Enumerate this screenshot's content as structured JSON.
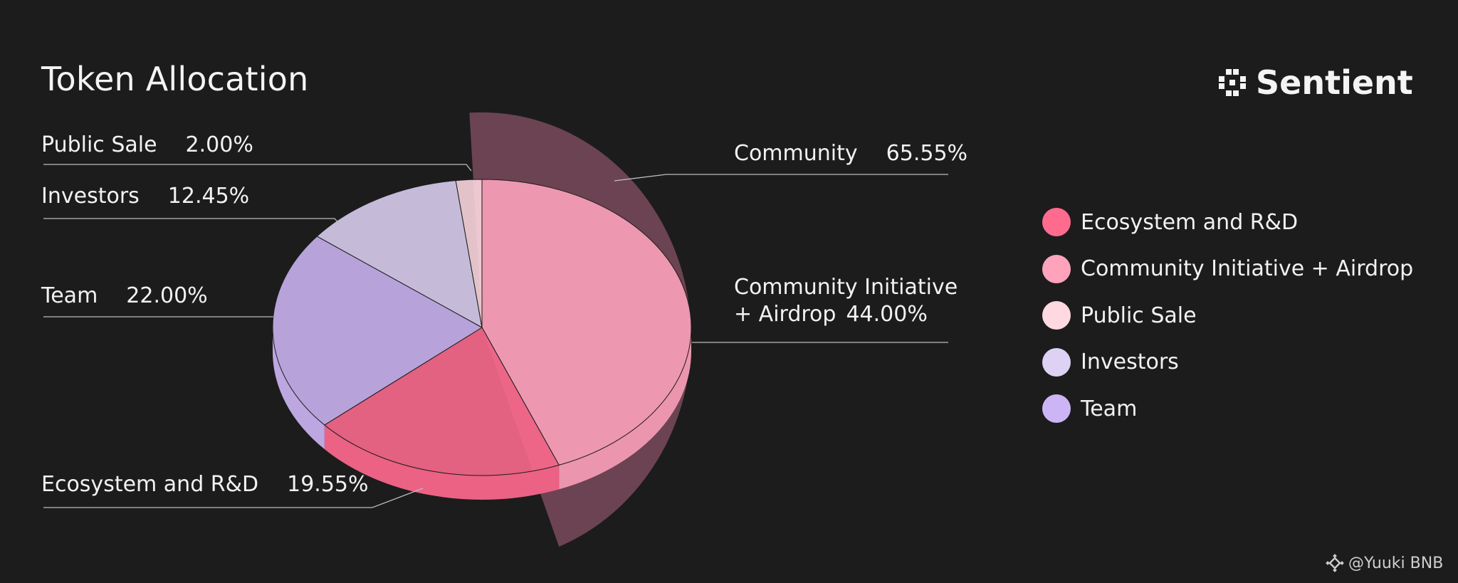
{
  "title": "Token Allocation",
  "brand": {
    "name": "Sentient",
    "icon": "sentient-logo-icon"
  },
  "watermark": {
    "text": "@Yuuki BNB",
    "icon": "binance-icon"
  },
  "chart_data": {
    "type": "pie",
    "title": "Token Allocation",
    "slices": [
      {
        "name": "Ecosystem and R&D",
        "value": 19.55,
        "label": "19.55%",
        "color": "#ff6b8f"
      },
      {
        "name": "Community Initiative + Airdrop",
        "value": 44.0,
        "label": "44.00%",
        "color": "#ffa3bd"
      },
      {
        "name": "Public Sale",
        "value": 2.0,
        "label": "2.00%",
        "color": "#ffd9e2"
      },
      {
        "name": "Investors",
        "value": 12.45,
        "label": "12.45%",
        "color": "#ddd2f4"
      },
      {
        "name": "Team",
        "value": 22.0,
        "label": "22.00%",
        "color": "#cdb5f5"
      }
    ],
    "group_annotation": {
      "name": "Community",
      "value": 65.55,
      "label": "65.55%",
      "color": "#7a4a5c"
    },
    "legend_position": "right"
  },
  "labels": {
    "public_sale": {
      "name": "Public Sale",
      "pct": "2.00%"
    },
    "investors": {
      "name": "Investors",
      "pct": "12.45%"
    },
    "team": {
      "name": "Team",
      "pct": "22.00%"
    },
    "ecosystem": {
      "name": "Ecosystem and R&D",
      "pct": "19.55%"
    },
    "community": {
      "name": "Community",
      "pct": "65.55%"
    },
    "community_initiative": {
      "line1": "Community Initiative",
      "line2": "+ Airdrop",
      "pct": "44.00%"
    }
  },
  "legend": [
    {
      "label": "Ecosystem and R&D",
      "color": "#ff6b8f"
    },
    {
      "label": "Community Initiative + Airdrop",
      "color": "#ffa3bd"
    },
    {
      "label": "Public Sale",
      "color": "#ffd9e2"
    },
    {
      "label": "Investors",
      "color": "#ddd2f4"
    },
    {
      "label": "Team",
      "color": "#cdb5f5"
    }
  ]
}
